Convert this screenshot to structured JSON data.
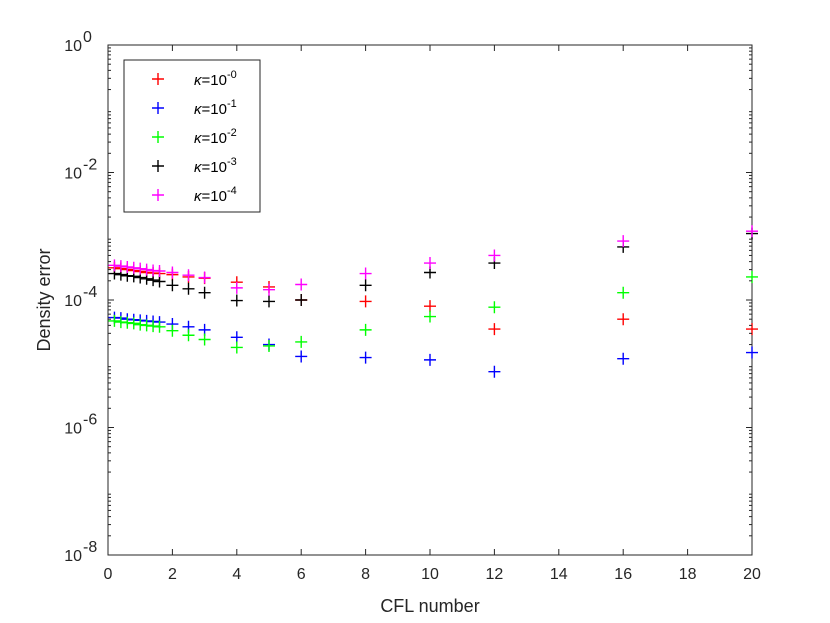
{
  "chart_data": {
    "type": "scatter",
    "title": "",
    "xlabel": "CFL number",
    "ylabel": "Density error",
    "xlim": [
      0,
      20
    ],
    "ylim_log10": [
      -8,
      0
    ],
    "yscale": "log",
    "grid": false,
    "legend_position": "top-left",
    "x_ticks": [
      0,
      2,
      4,
      6,
      8,
      10,
      12,
      14,
      16,
      18,
      20
    ],
    "y_ticks": [
      {
        "exp": 0,
        "base": "10",
        "sup": "0"
      },
      {
        "exp": -2,
        "base": "10",
        "sup": "-2"
      },
      {
        "exp": -4,
        "base": "10",
        "sup": "-4"
      },
      {
        "exp": -6,
        "base": "10",
        "sup": "-6"
      },
      {
        "exp": -8,
        "base": "10",
        "sup": "-8"
      }
    ],
    "series": [
      {
        "name": "κ=10^-0",
        "legend_base": "κ=10",
        "legend_sup": "-0",
        "color": "#ff0000",
        "x": [
          0.2,
          0.4,
          0.6,
          0.8,
          1.0,
          1.2,
          1.4,
          1.6,
          2,
          2.5,
          3,
          4,
          5,
          6,
          8,
          10,
          12,
          16,
          20
        ],
        "y": [
          0.00032,
          0.00031,
          0.0003,
          0.00029,
          0.00028,
          0.00027,
          0.000265,
          0.00026,
          0.00025,
          0.00023,
          0.00022,
          0.00019,
          0.00016,
          0.0001,
          9.5e-05,
          8e-05,
          3.5e-05,
          5e-05,
          3.5e-05
        ]
      },
      {
        "name": "κ=10^-1",
        "legend_base": "κ=10",
        "legend_sup": "-1",
        "color": "#0000ff",
        "x": [
          0.2,
          0.4,
          0.6,
          0.8,
          1.0,
          1.2,
          1.4,
          1.6,
          2,
          2.5,
          3,
          4,
          5,
          6,
          8,
          10,
          12,
          16,
          20
        ],
        "y": [
          5.3e-05,
          5.2e-05,
          5e-05,
          4.9e-05,
          4.8e-05,
          4.7e-05,
          4.6e-05,
          4.5e-05,
          4.2e-05,
          3.8e-05,
          3.4e-05,
          2.6e-05,
          2e-05,
          1.3e-05,
          1.25e-05,
          1.15e-05,
          7.5e-06,
          1.2e-05,
          1.5e-05
        ]
      },
      {
        "name": "κ=10^-2",
        "legend_base": "κ=10",
        "legend_sup": "-2",
        "color": "#00ff00",
        "x": [
          0.2,
          0.4,
          0.6,
          0.8,
          1.0,
          1.2,
          1.4,
          1.6,
          2,
          2.5,
          3,
          4,
          5,
          6,
          8,
          10,
          12,
          16,
          20
        ],
        "y": [
          4.7e-05,
          4.5e-05,
          4.4e-05,
          4.3e-05,
          4.1e-05,
          4e-05,
          3.9e-05,
          3.8e-05,
          3.3e-05,
          2.8e-05,
          2.4e-05,
          1.8e-05,
          1.9e-05,
          2.2e-05,
          3.4e-05,
          5.5e-05,
          7.7e-05,
          0.00013,
          0.00023
        ]
      },
      {
        "name": "κ=10^-3",
        "legend_base": "κ=10",
        "legend_sup": "-3",
        "color": "#000000",
        "x": [
          0.2,
          0.4,
          0.6,
          0.8,
          1.0,
          1.2,
          1.4,
          1.6,
          2,
          2.5,
          3,
          4,
          5,
          6,
          8,
          10,
          12,
          16,
          20
        ],
        "y": [
          0.00026,
          0.00025,
          0.00024,
          0.000235,
          0.000225,
          0.000215,
          0.000205,
          0.000195,
          0.00017,
          0.00015,
          0.00013,
          9.8e-05,
          9.5e-05,
          0.0001,
          0.00017,
          0.00027,
          0.00038,
          0.00068,
          0.0011
        ]
      },
      {
        "name": "κ=10^-4",
        "legend_base": "κ=10",
        "legend_sup": "-4",
        "color": "#ff00ff",
        "x": [
          0.2,
          0.4,
          0.6,
          0.8,
          1.0,
          1.2,
          1.4,
          1.6,
          2,
          2.5,
          3,
          4,
          5,
          6,
          8,
          10,
          12,
          16,
          20
        ],
        "y": [
          0.00035,
          0.00034,
          0.00033,
          0.00032,
          0.00031,
          0.0003,
          0.00029,
          0.000285,
          0.00027,
          0.000245,
          0.000225,
          0.000155,
          0.000145,
          0.000175,
          0.00026,
          0.00038,
          0.0005,
          0.00084,
          0.0012
        ]
      }
    ]
  }
}
